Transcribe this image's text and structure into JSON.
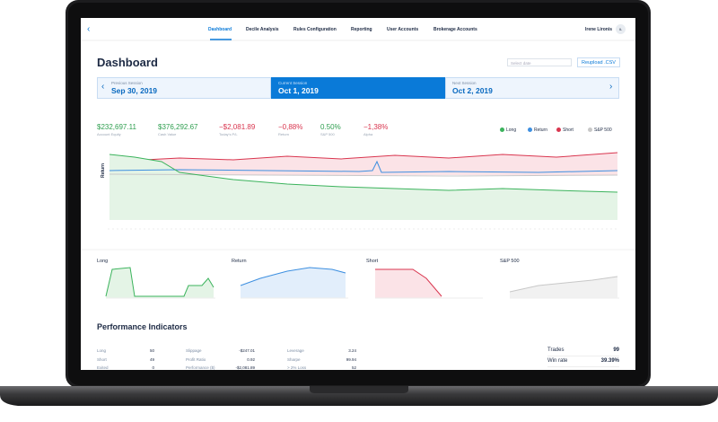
{
  "nav": {
    "links": [
      "Dashboard",
      "Decile Analysis",
      "Rules Configuration",
      "Reporting",
      "User Accounts",
      "Brokerage Accounts"
    ],
    "user": "Irene Lironis",
    "avatar": "IL"
  },
  "header": {
    "title": "Dashboard",
    "date_placeholder": "Select date",
    "upload": "Reupload .CSV"
  },
  "sessions": [
    {
      "label": "Previous Session",
      "date": "Sep 30, 2019"
    },
    {
      "label": "Current Session",
      "date": "Oct 1, 2019"
    },
    {
      "label": "Next Session",
      "date": "Oct 2, 2019"
    }
  ],
  "stats": [
    {
      "value": "$232,697.11",
      "label": "Account Equity",
      "color": "#2e9e4f"
    },
    {
      "value": "$376,292.67",
      "label": "Cash Value",
      "color": "#2e9e4f"
    },
    {
      "value": "−$2,081.89",
      "label": "Today's P/L",
      "color": "#d9364f"
    },
    {
      "value": "−0,88%",
      "label": "Return",
      "color": "#d9364f"
    },
    {
      "value": "0.50%",
      "label": "S&P 500",
      "color": "#2e9e4f"
    },
    {
      "value": "−1,38%",
      "label": "Alpha",
      "color": "#d9364f"
    }
  ],
  "legend": [
    {
      "name": "Long",
      "color": "#3bb35c"
    },
    {
      "name": "Return",
      "color": "#3d8fe0"
    },
    {
      "name": "Short",
      "color": "#d9364f"
    },
    {
      "name": "S&P 500",
      "color": "#c8c8c8"
    }
  ],
  "chart_axis_label": "Return",
  "mini_charts": [
    "Long",
    "Return",
    "Short",
    "S&P 500"
  ],
  "performance": {
    "title": "Performance Indicators",
    "groups": [
      [
        [
          "Long",
          "50"
        ],
        [
          "Short",
          "49"
        ],
        [
          "Exited",
          "0"
        ]
      ],
      [
        [
          "Slippage",
          "-$247.01"
        ],
        [
          "Profit Ratio",
          "0.92"
        ],
        [
          "Performance ($)",
          "-$2,081.89"
        ]
      ],
      [
        [
          "Leverage",
          "3.24"
        ],
        [
          "Sharpe",
          "99.94"
        ],
        [
          "> 2% Loss",
          "52"
        ]
      ]
    ],
    "summary": [
      [
        "Trades",
        "99"
      ],
      [
        "Win rate",
        "39.39%"
      ]
    ]
  }
}
